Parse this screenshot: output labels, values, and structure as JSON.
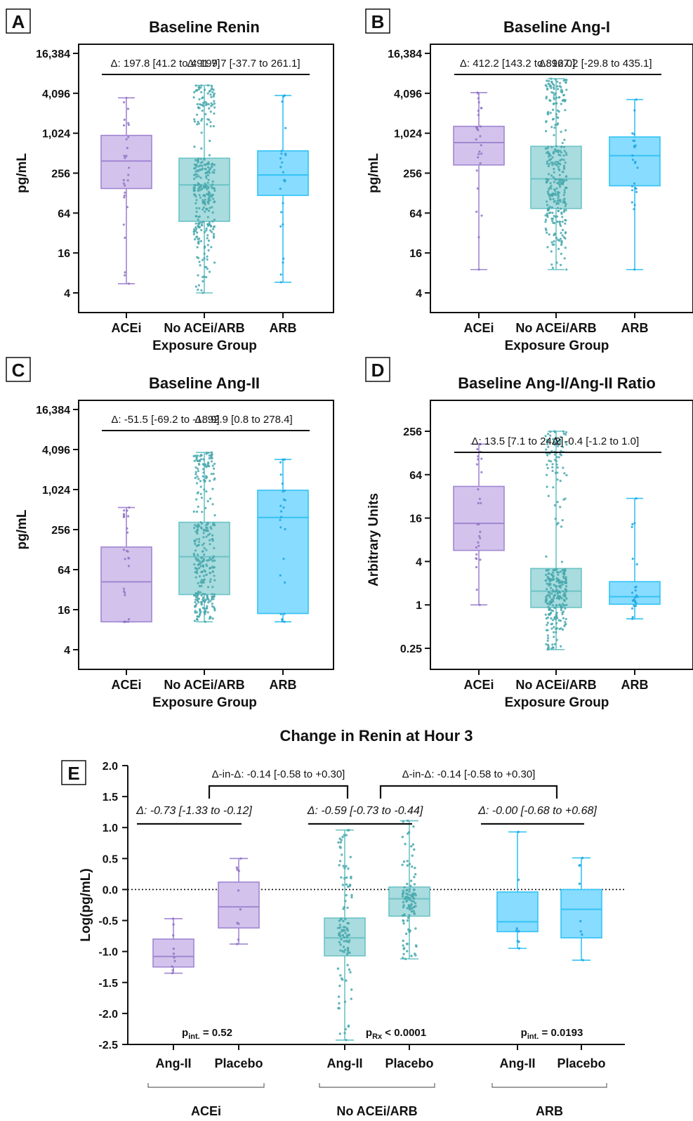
{
  "colors": {
    "ACEi": {
      "fill": "#d3c3ec",
      "stroke": "#a186d2",
      "dot": "#9274c6"
    },
    "No ACEi/ARB": {
      "fill": "#a9dcdf",
      "stroke": "#6cc3c6",
      "dot": "#48a8ad"
    },
    "ARB": {
      "fill": "#88dcff",
      "stroke": "#32c3f5",
      "dot": "#1ea5e0"
    }
  },
  "chart_data": [
    {
      "id": "A",
      "type": "box",
      "letter": "A",
      "title": "Baseline Renin",
      "ylabel": "pg/mL",
      "xlabel": "Exposure Group",
      "yscale": "log2",
      "yticks": [
        4,
        16,
        64,
        256,
        1024,
        4096,
        16384
      ],
      "yticklabels": [
        "4",
        "16",
        "64",
        "256",
        "1,024",
        "4,096",
        "16,384"
      ],
      "categories": [
        "ACEi",
        "No ACEi/ARB",
        "ARB"
      ],
      "boxes": [
        {
          "group": "ACEi",
          "min": 5.5,
          "q1": 150,
          "median": 390,
          "q3": 950,
          "max": 3500,
          "n": 28
        },
        {
          "group": "No ACEi/ARB",
          "min": 4,
          "q1": 48,
          "median": 170,
          "q3": 430,
          "max": 5400,
          "n": 320
        },
        {
          "group": "ARB",
          "min": 5.8,
          "q1": 118,
          "median": 240,
          "q3": 555,
          "max": 3800,
          "n": 24
        }
      ],
      "annotations": [
        {
          "text": "Δ: 197.8 [41.2 to 491.7]",
          "from": 0,
          "to": 1
        },
        {
          "text": "Δ: 199.7 [-37.7 to 261.1]",
          "from": 1,
          "to": 2
        }
      ]
    },
    {
      "id": "B",
      "type": "box",
      "letter": "B",
      "title": "Baseline Ang-I",
      "ylabel": "pg/mL",
      "xlabel": "Exposure Group",
      "yscale": "log2",
      "yticks": [
        4,
        16,
        64,
        256,
        1024,
        4096,
        16384
      ],
      "yticklabels": [
        "4",
        "16",
        "64",
        "256",
        "1,024",
        "4,096",
        "16,384"
      ],
      "categories": [
        "ACEi",
        "No ACEi/ARB",
        "ARB"
      ],
      "boxes": [
        {
          "group": "ACEi",
          "min": 9,
          "q1": 340,
          "median": 740,
          "q3": 1300,
          "max": 4200,
          "n": 28
        },
        {
          "group": "No ACEi/ARB",
          "min": 9,
          "q1": 75,
          "median": 210,
          "q3": 650,
          "max": 6800,
          "n": 320
        },
        {
          "group": "ARB",
          "min": 9,
          "q1": 165,
          "median": 470,
          "q3": 900,
          "max": 3300,
          "n": 24
        }
      ],
      "annotations": [
        {
          "text": "Δ: 412.2 [143.2 to 896.0]",
          "from": 0,
          "to": 1
        },
        {
          "text": "Δ: 127.2 [-29.8 to 435.1]",
          "from": 1,
          "to": 2
        }
      ]
    },
    {
      "id": "C",
      "type": "box",
      "letter": "C",
      "title": "Baseline Ang-II",
      "ylabel": "pg/mL",
      "xlabel": "Exposure Group",
      "yscale": "log2",
      "yticks": [
        4,
        16,
        64,
        256,
        1024,
        4096,
        16384
      ],
      "yticklabels": [
        "4",
        "16",
        "64",
        "256",
        "1,024",
        "4,096",
        "16,384"
      ],
      "categories": [
        "ACEi",
        "No ACEi/ARB",
        "ARB"
      ],
      "boxes": [
        {
          "group": "ACEi",
          "min": 10.5,
          "q1": 10.5,
          "median": 42,
          "q3": 140,
          "max": 550,
          "n": 28
        },
        {
          "group": "No ACEi/ARB",
          "min": 10.5,
          "q1": 27,
          "median": 100,
          "q3": 330,
          "max": 3700,
          "n": 320
        },
        {
          "group": "ARB",
          "min": 10.5,
          "q1": 14,
          "median": 390,
          "q3": 1000,
          "max": 2900,
          "n": 24
        }
      ],
      "annotations": [
        {
          "text": "Δ: -51.5 [-69.2 to -18.9]",
          "from": 0,
          "to": 1
        },
        {
          "text": "Δ: 92.9 [0.8 to 278.4]",
          "from": 1,
          "to": 2
        }
      ]
    },
    {
      "id": "D",
      "type": "box",
      "letter": "D",
      "title": "Baseline Ang-I/Ang-II Ratio",
      "ylabel": "Arbitrary Units",
      "xlabel": "Exposure Group",
      "yscale": "log2",
      "yticks": [
        0.25,
        1,
        4,
        16,
        64,
        256
      ],
      "yticklabels": [
        "0.25",
        "1",
        "4",
        "16",
        "64",
        "256"
      ],
      "categories": [
        "ACEi",
        "No ACEi/ARB",
        "ARB"
      ],
      "boxes": [
        {
          "group": "ACEi",
          "min": 1,
          "q1": 5.7,
          "median": 13.5,
          "q3": 44,
          "max": 170,
          "n": 28
        },
        {
          "group": "No ACEi/ARB",
          "min": 0.24,
          "q1": 0.92,
          "median": 1.55,
          "q3": 3.2,
          "max": 256,
          "n": 320
        },
        {
          "group": "ARB",
          "min": 0.64,
          "q1": 1.02,
          "median": 1.3,
          "q3": 2.1,
          "max": 30,
          "n": 24
        }
      ],
      "annotations": [
        {
          "text": "Δ: 13.5 [7.1 to 24.2]",
          "from": 0,
          "to": 1
        },
        {
          "text": "Δ: -0.4 [-1.2 to 1.0]",
          "from": 1,
          "to": 2
        }
      ]
    },
    {
      "id": "E",
      "type": "box",
      "letter": "E",
      "title": "Change in Renin at Hour 3",
      "ylabel": "Log(pg/mL)",
      "yscale": "linear",
      "ylim": [
        -2.5,
        2.0
      ],
      "yticks": [
        -2.5,
        -2.0,
        -1.5,
        -1.0,
        -0.5,
        0.0,
        0.5,
        1.0,
        1.5,
        2.0
      ],
      "yticklabels": [
        "-2.5",
        "-2.0",
        "-1.5",
        "-1.0",
        "-0.5",
        "0.0",
        "0.5",
        "1.0",
        "1.5",
        "2.0"
      ],
      "reference_line": 0,
      "groups": [
        "ACEi",
        "No ACEi/ARB",
        "ARB"
      ],
      "arms": [
        "Ang-II",
        "Placebo"
      ],
      "boxes": [
        {
          "group": "ACEi",
          "arm": "Ang-II",
          "min": -1.35,
          "q1": -1.25,
          "median": -1.08,
          "q3": -0.8,
          "max": -0.47,
          "n": 10
        },
        {
          "group": "ACEi",
          "arm": "Placebo",
          "min": -0.88,
          "q1": -0.62,
          "median": -0.28,
          "q3": 0.12,
          "max": 0.5,
          "n": 10
        },
        {
          "group": "No ACEi/ARB",
          "arm": "Ang-II",
          "min": -2.43,
          "q1": -1.07,
          "median": -0.78,
          "q3": -0.46,
          "max": 0.96,
          "n": 110
        },
        {
          "group": "No ACEi/ARB",
          "arm": "Placebo",
          "min": -1.12,
          "q1": -0.43,
          "median": -0.15,
          "q3": 0.04,
          "max": 1.11,
          "n": 110
        },
        {
          "group": "ARB",
          "arm": "Ang-II",
          "min": -0.95,
          "q1": -0.68,
          "median": -0.52,
          "q3": -0.04,
          "max": 0.93,
          "n": 8
        },
        {
          "group": "ARB",
          "arm": "Placebo",
          "min": -1.14,
          "q1": -0.78,
          "median": -0.32,
          "q3": 0.0,
          "max": 0.51,
          "n": 8
        }
      ],
      "annotations": [
        {
          "text": "Δ: -0.73 [-1.33 to -0.12]",
          "group": "ACEi",
          "italic": true
        },
        {
          "text": "Δ: -0.59 [-0.73 to -0.44]",
          "group": "No ACEi/ARB",
          "italic": true
        },
        {
          "text": "Δ: -0.00 [-0.68 to +0.68]",
          "group": "ARB",
          "italic": true
        },
        {
          "text": "Δ-in-Δ: -0.14 [-0.58 to +0.30]",
          "from": "ACEi",
          "to": "No ACEi/ARB"
        },
        {
          "text": "Δ-in-Δ: -0.14 [-0.58 to +0.30]",
          "from": "No ACEi/ARB",
          "to": "ARB"
        }
      ],
      "pvalues": [
        {
          "group": "ACEi",
          "p": "p",
          "sub": "int.",
          "rest": " = 0.52"
        },
        {
          "group": "No ACEi/ARB",
          "p": "p",
          "sub": "Rx",
          "rest": " < 0.0001"
        },
        {
          "group": "ARB",
          "p": "p",
          "sub": "int.",
          "rest": " = 0.0193"
        }
      ]
    }
  ]
}
